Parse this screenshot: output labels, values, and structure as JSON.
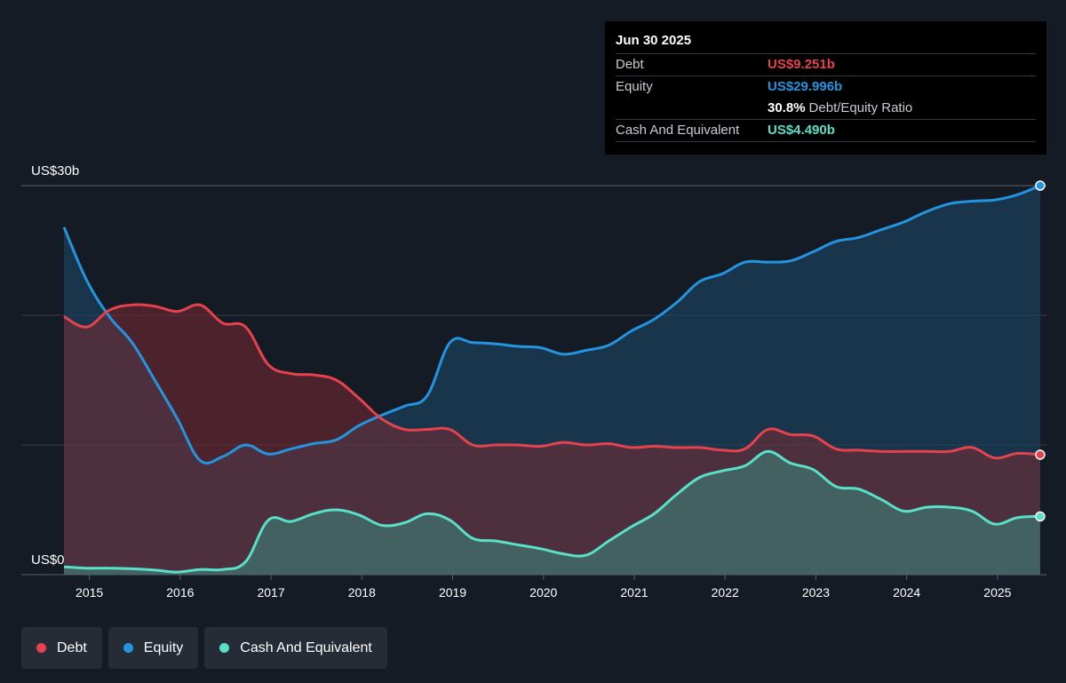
{
  "tooltip": {
    "date": "Jun 30 2025",
    "debt_label": "Debt",
    "debt_value": "US$9.251b",
    "equity_label": "Equity",
    "equity_value": "US$29.996b",
    "ratio_value": "30.8%",
    "ratio_label": "Debt/Equity Ratio",
    "cash_label": "Cash And Equivalent",
    "cash_value": "US$4.490b"
  },
  "colors": {
    "debt": "#e5424d",
    "equity": "#2394df",
    "cash": "#58e0c8",
    "background": "#151b24"
  },
  "chart_data": {
    "type": "area",
    "yticks": [
      {
        "value": 30,
        "label": "US$30b"
      },
      {
        "value": 0,
        "label": "US$0"
      }
    ],
    "ylim": [
      0,
      30
    ],
    "xlim": [
      2014.72,
      2025.5
    ],
    "xticks": [
      2015,
      2016,
      2017,
      2018,
      2019,
      2020,
      2021,
      2022,
      2023,
      2024,
      2025
    ],
    "xticklabels": [
      "2015",
      "2016",
      "2017",
      "2018",
      "2019",
      "2020",
      "2021",
      "2022",
      "2023",
      "2024",
      "2025"
    ],
    "series": [
      {
        "name": "Debt",
        "key": "debt",
        "points": [
          [
            2014.72,
            19.9
          ],
          [
            2014.97,
            19.1
          ],
          [
            2015.22,
            20.4
          ],
          [
            2015.47,
            20.8
          ],
          [
            2015.72,
            20.7
          ],
          [
            2015.97,
            20.3
          ],
          [
            2016.22,
            20.8
          ],
          [
            2016.47,
            19.4
          ],
          [
            2016.72,
            19.1
          ],
          [
            2016.97,
            16.2
          ],
          [
            2017.22,
            15.5
          ],
          [
            2017.47,
            15.4
          ],
          [
            2017.72,
            15.0
          ],
          [
            2017.97,
            13.6
          ],
          [
            2018.22,
            12.0
          ],
          [
            2018.47,
            11.2
          ],
          [
            2018.72,
            11.2
          ],
          [
            2018.97,
            11.2
          ],
          [
            2019.22,
            10.0
          ],
          [
            2019.47,
            10.0
          ],
          [
            2019.72,
            10.0
          ],
          [
            2019.97,
            9.9
          ],
          [
            2020.22,
            10.2
          ],
          [
            2020.47,
            10.0
          ],
          [
            2020.72,
            10.1
          ],
          [
            2020.97,
            9.8
          ],
          [
            2021.22,
            9.9
          ],
          [
            2021.47,
            9.8
          ],
          [
            2021.72,
            9.8
          ],
          [
            2021.97,
            9.6
          ],
          [
            2022.22,
            9.7
          ],
          [
            2022.47,
            11.2
          ],
          [
            2022.72,
            10.8
          ],
          [
            2022.97,
            10.7
          ],
          [
            2023.22,
            9.7
          ],
          [
            2023.47,
            9.6
          ],
          [
            2023.72,
            9.5
          ],
          [
            2023.97,
            9.5
          ],
          [
            2024.22,
            9.5
          ],
          [
            2024.47,
            9.5
          ],
          [
            2024.72,
            9.8
          ],
          [
            2024.97,
            9.0
          ],
          [
            2025.22,
            9.35
          ],
          [
            2025.47,
            9.25
          ]
        ]
      },
      {
        "name": "Equity",
        "key": "equity",
        "points": [
          [
            2014.72,
            26.8
          ],
          [
            2014.97,
            22.7
          ],
          [
            2015.22,
            19.9
          ],
          [
            2015.47,
            17.9
          ],
          [
            2015.72,
            15.0
          ],
          [
            2015.97,
            12.0
          ],
          [
            2016.22,
            8.8
          ],
          [
            2016.47,
            9.1
          ],
          [
            2016.72,
            10.0
          ],
          [
            2016.97,
            9.3
          ],
          [
            2017.22,
            9.7
          ],
          [
            2017.47,
            10.1
          ],
          [
            2017.72,
            10.4
          ],
          [
            2017.97,
            11.5
          ],
          [
            2018.22,
            12.3
          ],
          [
            2018.47,
            13.0
          ],
          [
            2018.72,
            13.8
          ],
          [
            2018.97,
            17.9
          ],
          [
            2019.22,
            17.9
          ],
          [
            2019.47,
            17.8
          ],
          [
            2019.72,
            17.6
          ],
          [
            2019.97,
            17.5
          ],
          [
            2020.22,
            17.0
          ],
          [
            2020.47,
            17.3
          ],
          [
            2020.72,
            17.7
          ],
          [
            2020.97,
            18.8
          ],
          [
            2021.22,
            19.7
          ],
          [
            2021.47,
            21.0
          ],
          [
            2021.72,
            22.6
          ],
          [
            2021.97,
            23.2
          ],
          [
            2022.22,
            24.1
          ],
          [
            2022.47,
            24.1
          ],
          [
            2022.72,
            24.2
          ],
          [
            2022.97,
            24.9
          ],
          [
            2023.22,
            25.7
          ],
          [
            2023.47,
            26.0
          ],
          [
            2023.72,
            26.6
          ],
          [
            2023.97,
            27.2
          ],
          [
            2024.22,
            28.0
          ],
          [
            2024.47,
            28.6
          ],
          [
            2024.72,
            28.8
          ],
          [
            2024.97,
            28.9
          ],
          [
            2025.22,
            29.3
          ],
          [
            2025.47,
            30.0
          ]
        ]
      },
      {
        "name": "Cash And Equivalent",
        "key": "cash",
        "points": [
          [
            2014.72,
            0.6
          ],
          [
            2014.97,
            0.5
          ],
          [
            2015.22,
            0.5
          ],
          [
            2015.47,
            0.45
          ],
          [
            2015.72,
            0.35
          ],
          [
            2015.97,
            0.2
          ],
          [
            2016.22,
            0.4
          ],
          [
            2016.47,
            0.4
          ],
          [
            2016.72,
            1.0
          ],
          [
            2016.97,
            4.2
          ],
          [
            2017.22,
            4.1
          ],
          [
            2017.47,
            4.7
          ],
          [
            2017.72,
            5.0
          ],
          [
            2017.97,
            4.6
          ],
          [
            2018.22,
            3.8
          ],
          [
            2018.47,
            4.0
          ],
          [
            2018.72,
            4.7
          ],
          [
            2018.97,
            4.2
          ],
          [
            2019.22,
            2.8
          ],
          [
            2019.47,
            2.6
          ],
          [
            2019.72,
            2.3
          ],
          [
            2019.97,
            2.0
          ],
          [
            2020.22,
            1.6
          ],
          [
            2020.47,
            1.5
          ],
          [
            2020.72,
            2.6
          ],
          [
            2020.97,
            3.7
          ],
          [
            2021.22,
            4.7
          ],
          [
            2021.47,
            6.2
          ],
          [
            2021.72,
            7.5
          ],
          [
            2021.97,
            8.0
          ],
          [
            2022.22,
            8.4
          ],
          [
            2022.47,
            9.5
          ],
          [
            2022.72,
            8.6
          ],
          [
            2022.97,
            8.1
          ],
          [
            2023.22,
            6.8
          ],
          [
            2023.47,
            6.6
          ],
          [
            2023.72,
            5.8
          ],
          [
            2023.97,
            4.9
          ],
          [
            2024.22,
            5.2
          ],
          [
            2024.47,
            5.2
          ],
          [
            2024.72,
            4.9
          ],
          [
            2024.97,
            3.9
          ],
          [
            2025.22,
            4.4
          ],
          [
            2025.47,
            4.49
          ]
        ]
      }
    ]
  },
  "legend": [
    {
      "label": "Debt",
      "key": "debt"
    },
    {
      "label": "Equity",
      "key": "equity"
    },
    {
      "label": "Cash And Equivalent",
      "key": "cash"
    }
  ]
}
